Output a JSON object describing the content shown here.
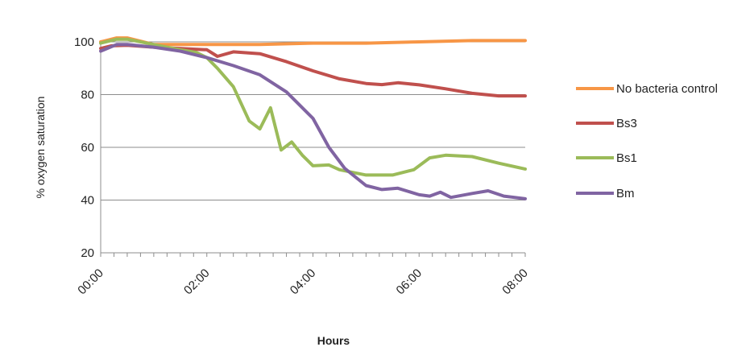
{
  "chart_data": {
    "type": "line",
    "title": "",
    "xlabel": "Hours",
    "ylabel": "% oxygen saturation",
    "x_unit": "hours",
    "xlim": [
      0,
      8
    ],
    "ylim": [
      20,
      100
    ],
    "yticks": [
      20,
      40,
      60,
      80,
      100
    ],
    "xticks": [
      {
        "value": 0,
        "label": "00:00"
      },
      {
        "value": 2,
        "label": "02:00"
      },
      {
        "value": 4,
        "label": "04:00"
      },
      {
        "value": 6,
        "label": "06:00"
      },
      {
        "value": 8,
        "label": "08:00"
      }
    ],
    "grid": true,
    "legend_position": "right",
    "series": [
      {
        "name": "No bacteria control",
        "color": "#f79646",
        "points": [
          [
            0,
            100
          ],
          [
            0.3,
            101.5
          ],
          [
            0.5,
            101.5
          ],
          [
            0.8,
            100
          ],
          [
            1,
            99
          ],
          [
            2,
            99
          ],
          [
            3,
            99
          ],
          [
            4,
            99.5
          ],
          [
            5,
            99.5
          ],
          [
            6,
            100
          ],
          [
            7,
            100.5
          ],
          [
            8,
            100.5
          ]
        ]
      },
      {
        "name": "Bs3",
        "color": "#c0504d",
        "points": [
          [
            0,
            97.5
          ],
          [
            0.2,
            98.5
          ],
          [
            0.5,
            98.7
          ],
          [
            1,
            98
          ],
          [
            1.5,
            97.5
          ],
          [
            2,
            97
          ],
          [
            2.2,
            94.5
          ],
          [
            2.5,
            96.2
          ],
          [
            3,
            95.5
          ],
          [
            3.5,
            92.5
          ],
          [
            4,
            89
          ],
          [
            4.5,
            86
          ],
          [
            5,
            84.2
          ],
          [
            5.3,
            83.8
          ],
          [
            5.6,
            84.5
          ],
          [
            6,
            83.7
          ],
          [
            6.5,
            82.2
          ],
          [
            7,
            80.5
          ],
          [
            7.5,
            79.5
          ],
          [
            8,
            79.5
          ]
        ]
      },
      {
        "name": "Bs1",
        "color": "#9bbb59",
        "points": [
          [
            0,
            99.5
          ],
          [
            0.3,
            101
          ],
          [
            0.5,
            101
          ],
          [
            1,
            99
          ],
          [
            1.5,
            97
          ],
          [
            1.8,
            96
          ],
          [
            2,
            94
          ],
          [
            2.2,
            90
          ],
          [
            2.5,
            83
          ],
          [
            2.8,
            70
          ],
          [
            3,
            67
          ],
          [
            3.2,
            75
          ],
          [
            3.4,
            59
          ],
          [
            3.6,
            62
          ],
          [
            3.8,
            57
          ],
          [
            4,
            53
          ],
          [
            4.3,
            53.3
          ],
          [
            4.5,
            51.5
          ],
          [
            5,
            49.5
          ],
          [
            5.5,
            49.5
          ],
          [
            5.9,
            51.5
          ],
          [
            6.2,
            56
          ],
          [
            6.5,
            57
          ],
          [
            7,
            56.5
          ],
          [
            7.5,
            54
          ],
          [
            8,
            51.8
          ]
        ]
      },
      {
        "name": "Bm",
        "color": "#8064a2",
        "points": [
          [
            0,
            96.5
          ],
          [
            0.3,
            99
          ],
          [
            0.5,
            99
          ],
          [
            1,
            98
          ],
          [
            1.5,
            96.5
          ],
          [
            2,
            94
          ],
          [
            2.5,
            91
          ],
          [
            3,
            87.5
          ],
          [
            3.5,
            81
          ],
          [
            4,
            71
          ],
          [
            4.3,
            60
          ],
          [
            4.6,
            52
          ],
          [
            5,
            45.5
          ],
          [
            5.3,
            44
          ],
          [
            5.6,
            44.5
          ],
          [
            6,
            42
          ],
          [
            6.2,
            41.5
          ],
          [
            6.4,
            43
          ],
          [
            6.6,
            41
          ],
          [
            7,
            42.5
          ],
          [
            7.3,
            43.5
          ],
          [
            7.6,
            41.5
          ],
          [
            8,
            40.5
          ]
        ]
      }
    ]
  }
}
